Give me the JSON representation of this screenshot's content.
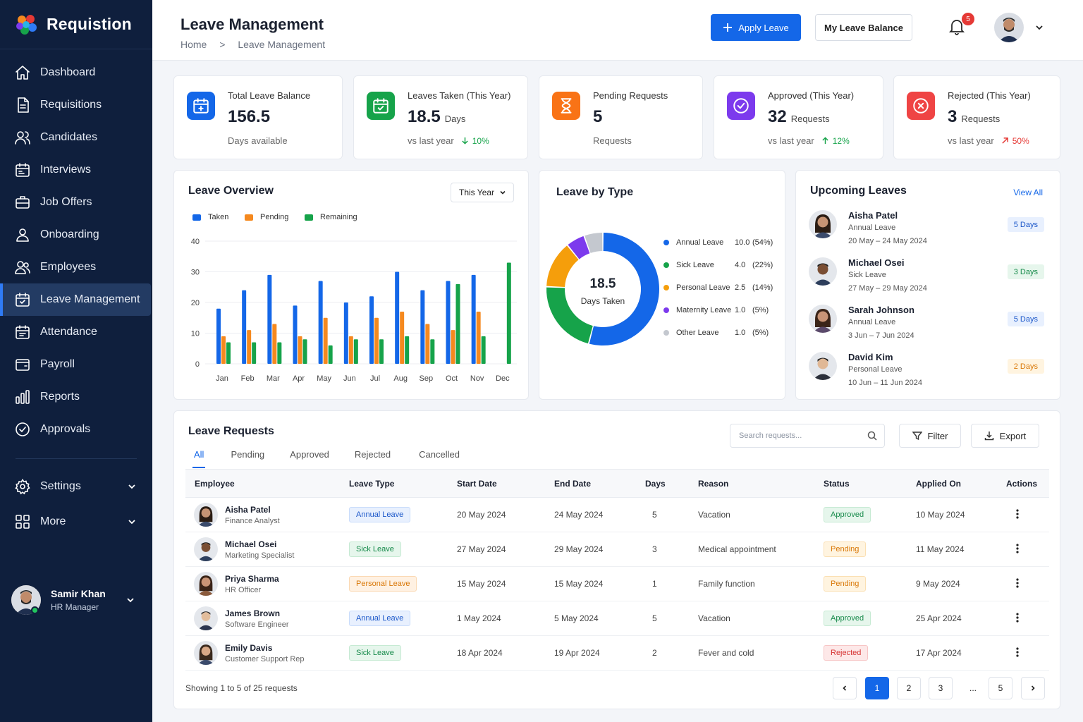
{
  "app": {
    "name": "Requistion"
  },
  "sidebar": {
    "items": [
      {
        "label": "Dashboard",
        "icon": "home-icon"
      },
      {
        "label": "Requisitions",
        "icon": "document-icon"
      },
      {
        "label": "Candidates",
        "icon": "users-icon"
      },
      {
        "label": "Interviews",
        "icon": "calendar-icon"
      },
      {
        "label": "Job Offers",
        "icon": "briefcase-icon"
      },
      {
        "label": "Onboarding",
        "icon": "user-icon"
      },
      {
        "label": "Employees",
        "icon": "team-icon"
      },
      {
        "label": "Leave Management",
        "icon": "calendar-check-icon",
        "active": true
      },
      {
        "label": "Attendance",
        "icon": "calendar-clock-icon"
      },
      {
        "label": "Payroll",
        "icon": "wallet-icon"
      },
      {
        "label": "Reports",
        "icon": "bar-chart-icon"
      },
      {
        "label": "Approvals",
        "icon": "check-circle-icon"
      }
    ],
    "settings_label": "Settings",
    "more_label": "More",
    "user": {
      "name": "Samir Khan",
      "role": "HR Manager"
    }
  },
  "header": {
    "title": "Leave Management",
    "breadcrumb": {
      "home": "Home",
      "separator": ">",
      "current": "Leave Management"
    },
    "apply_label": "Apply Leave",
    "balance_label": "My Leave Balance",
    "notification_count": "5"
  },
  "stats": [
    {
      "label": "Total Leave Balance",
      "value": "156.5",
      "unit": "",
      "sub": "Days available",
      "trend": "",
      "color": "#1467e8",
      "icon": "calendar-plus-icon"
    },
    {
      "label": "Leaves Taken (This Year)",
      "value": "18.5",
      "unit": "Days",
      "sub": "vs last year",
      "trend": "10%",
      "trend_dir": "down",
      "trend_color": "#16a34a",
      "color": "#16a34a",
      "icon": "calendar-check-icon"
    },
    {
      "label": "Pending Requests",
      "value": "5",
      "unit": "",
      "sub": "Requests",
      "trend": "",
      "color": "#f97316",
      "icon": "hourglass-icon"
    },
    {
      "label": "Approved (This Year)",
      "value": "32",
      "unit": "Requests",
      "sub": "vs last year",
      "trend": "12%",
      "trend_dir": "up",
      "trend_color": "#16a34a",
      "color": "#7c3aed",
      "icon": "check-circle-icon"
    },
    {
      "label": "Rejected (This Year)",
      "value": "3",
      "unit": "Requests",
      "sub": "vs last year",
      "trend": "50%",
      "trend_dir": "up",
      "trend_color": "#e53935",
      "color": "#ef4444",
      "icon": "x-circle-icon"
    }
  ],
  "overview": {
    "title": "Leave Overview",
    "period": "This Year",
    "legend": [
      "Taken",
      "Pending",
      "Remaining"
    ]
  },
  "chart_data": [
    {
      "type": "bar",
      "title": "Leave Overview",
      "categories": [
        "Jan",
        "Feb",
        "Mar",
        "Apr",
        "May",
        "Jun",
        "Jul",
        "Aug",
        "Sep",
        "Oct",
        "Nov",
        "Dec"
      ],
      "ylim": [
        0,
        40
      ],
      "yticks": [
        0,
        10,
        20,
        30,
        40
      ],
      "series": [
        {
          "name": "Taken",
          "color": "#1467e8",
          "values": [
            18,
            24,
            29,
            19,
            27,
            20,
            22,
            30,
            24,
            27,
            29,
            0
          ]
        },
        {
          "name": "Pending",
          "color": "#f5891f",
          "values": [
            9,
            11,
            13,
            9,
            15,
            9,
            15,
            17,
            13,
            11,
            17,
            0
          ]
        },
        {
          "name": "Remaining",
          "color": "#16a34a",
          "values": [
            7,
            7,
            7,
            8,
            6,
            8,
            8,
            9,
            8,
            26,
            9,
            33
          ]
        }
      ]
    },
    {
      "type": "pie",
      "title": "Leave by Type",
      "center_value": "18.5",
      "center_label": "Days Taken",
      "slices": [
        {
          "label": "Annual Leave",
          "value": 10.0,
          "pct": "(54%)",
          "color": "#1467e8"
        },
        {
          "label": "Sick Leave",
          "value": 4.0,
          "pct": "(22%)",
          "color": "#16a34a"
        },
        {
          "label": "Personal Leave",
          "value": 2.5,
          "pct": "(14%)",
          "color": "#f59e0b"
        },
        {
          "label": "Maternity Leave",
          "value": 1.0,
          "pct": "(5%)",
          "color": "#7c3aed"
        },
        {
          "label": "Other Leave",
          "value": 1.0,
          "pct": "(5%)",
          "color": "#c4c8cf"
        }
      ]
    }
  ],
  "upcoming": {
    "title": "Upcoming Leaves",
    "view_all": "View All",
    "items": [
      {
        "name": "Aisha Patel",
        "type": "Annual Leave",
        "dates": "20 May – 24 May 2024",
        "days": "5 Days",
        "kind": "annual"
      },
      {
        "name": "Michael Osei",
        "type": "Sick Leave",
        "dates": "27 May – 29 May 2024",
        "days": "3 Days",
        "kind": "sick"
      },
      {
        "name": "Sarah Johnson",
        "type": "Annual Leave",
        "dates": "3 Jun – 7 Jun 2024",
        "days": "5 Days",
        "kind": "annual"
      },
      {
        "name": "David Kim",
        "type": "Personal Leave",
        "dates": "10 Jun – 11 Jun 2024",
        "days": "2 Days",
        "kind": "personal"
      }
    ]
  },
  "requests": {
    "title": "Leave Requests",
    "search_placeholder": "Search requests...",
    "filter_label": "Filter",
    "export_label": "Export",
    "tabs": [
      "All",
      "Pending",
      "Approved",
      "Rejected",
      "Cancelled"
    ],
    "columns": [
      "Employee",
      "Leave Type",
      "Start Date",
      "End Date",
      "Days",
      "Reason",
      "Status",
      "Applied On",
      "Actions"
    ],
    "rows": [
      {
        "name": "Aisha Patel",
        "role": "Finance Analyst",
        "type": "Annual Leave",
        "kind": "annual",
        "start": "20 May 2024",
        "end": "24 May 2024",
        "days": "5",
        "reason": "Vacation",
        "status": "Approved",
        "applied": "10 May 2024"
      },
      {
        "name": "Michael Osei",
        "role": "Marketing Specialist",
        "type": "Sick Leave",
        "kind": "sick",
        "start": "27 May 2024",
        "end": "29 May 2024",
        "days": "3",
        "reason": "Medical appointment",
        "status": "Pending",
        "applied": "11 May 2024"
      },
      {
        "name": "Priya Sharma",
        "role": "HR Officer",
        "type": "Personal Leave",
        "kind": "personal",
        "start": "15 May 2024",
        "end": "15 May 2024",
        "days": "1",
        "reason": "Family function",
        "status": "Pending",
        "applied": "9 May 2024"
      },
      {
        "name": "James Brown",
        "role": "Software Engineer",
        "type": "Annual Leave",
        "kind": "annual",
        "start": "1 May 2024",
        "end": "5 May 2024",
        "days": "5",
        "reason": "Vacation",
        "status": "Approved",
        "applied": "25 Apr 2024"
      },
      {
        "name": "Emily Davis",
        "role": "Customer Support Rep",
        "type": "Sick Leave",
        "kind": "sick",
        "start": "18 Apr 2024",
        "end": "19 Apr 2024",
        "days": "2",
        "reason": "Fever and cold",
        "status": "Rejected",
        "applied": "17 Apr 2024"
      }
    ],
    "footer": "Showing 1 to 5 of 25 requests",
    "pages": [
      "1",
      "2",
      "3",
      "...",
      "5"
    ]
  }
}
